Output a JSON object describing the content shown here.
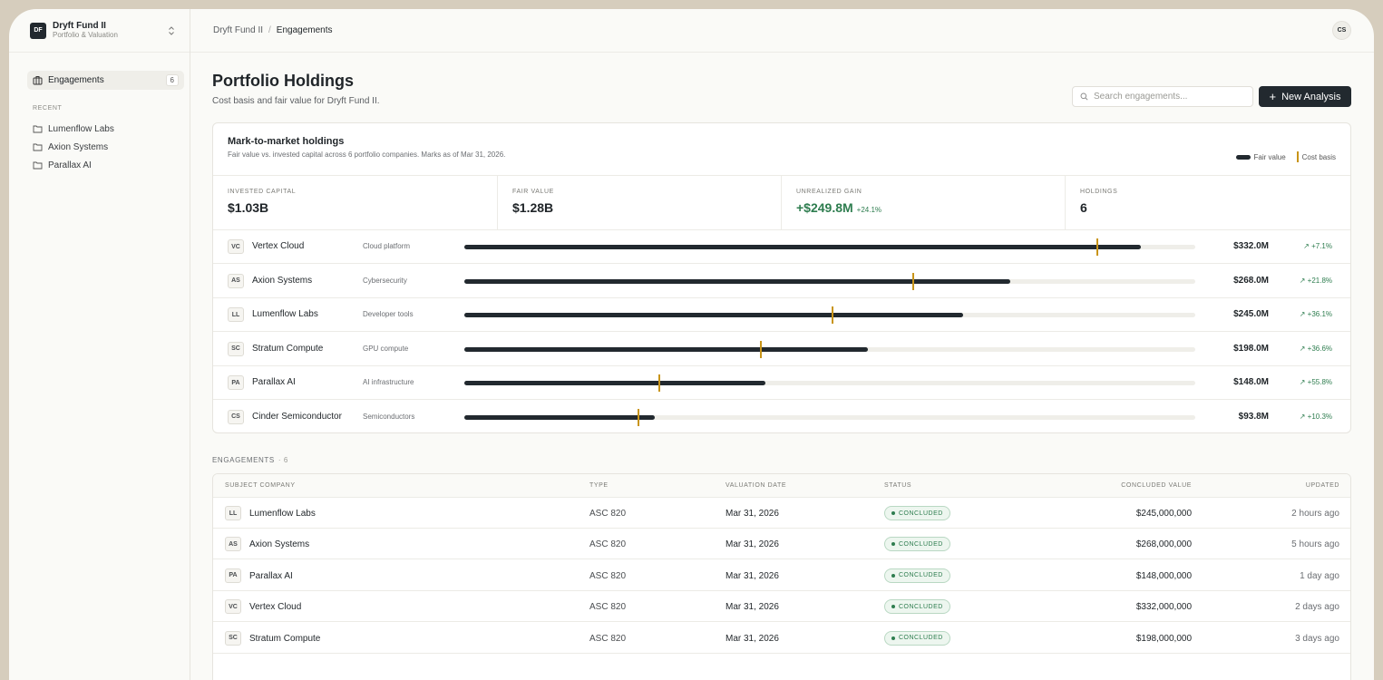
{
  "workspace": {
    "initials": "DF",
    "name": "Dryft Fund II",
    "subtitle": "Portfolio & Valuation"
  },
  "sidebar": {
    "nav": {
      "label": "Engagements",
      "count": "6"
    },
    "recent_heading": "RECENT",
    "recent": [
      {
        "label": "Lumenflow Labs"
      },
      {
        "label": "Axion Systems"
      },
      {
        "label": "Parallax AI"
      }
    ]
  },
  "breadcrumb": {
    "parent": "Dryft Fund II",
    "separator": "/",
    "current": "Engagements"
  },
  "user": {
    "initials": "CS"
  },
  "header": {
    "title": "Portfolio Holdings",
    "subtitle": "Cost basis and fair value for Dryft Fund II.",
    "search_placeholder": "Search engagements...",
    "new_button": "New Analysis"
  },
  "holdings_card": {
    "title": "Mark-to-market holdings",
    "subtitle": "Fair value vs. invested capital across 6 portfolio companies. Marks as of Mar 31, 2026.",
    "legend": {
      "fair": "Fair value",
      "cost": "Cost basis"
    },
    "stats": {
      "invested": {
        "label": "INVESTED CAPITAL",
        "value": "$1.03B"
      },
      "fair": {
        "label": "FAIR VALUE",
        "value": "$1.28B"
      },
      "gain": {
        "label": "UNREALIZED GAIN",
        "value": "+$249.8M",
        "pct": "+24.1%"
      },
      "holdings": {
        "label": "HOLDINGS",
        "value": "6"
      }
    },
    "rows": [
      {
        "initials": "VC",
        "name": "Vertex Cloud",
        "sector": "Cloud platform",
        "fair_value": "$332.0M",
        "change": "↗ +7.1%",
        "fair_fraction": 0.926,
        "cost_fraction": 0.865
      },
      {
        "initials": "AS",
        "name": "Axion Systems",
        "sector": "Cybersecurity",
        "fair_value": "$268.0M",
        "change": "↗ +21.8%",
        "fair_fraction": 0.747,
        "cost_fraction": 0.613
      },
      {
        "initials": "LL",
        "name": "Lumenflow Labs",
        "sector": "Developer tools",
        "fair_value": "$245.0M",
        "change": "↗ +36.1%",
        "fair_fraction": 0.683,
        "cost_fraction": 0.502
      },
      {
        "initials": "SC",
        "name": "Stratum Compute",
        "sector": "GPU compute",
        "fair_value": "$198.0M",
        "change": "↗ +36.6%",
        "fair_fraction": 0.552,
        "cost_fraction": 0.404
      },
      {
        "initials": "PA",
        "name": "Parallax AI",
        "sector": "AI infrastructure",
        "fair_value": "$148.0M",
        "change": "↗ +55.8%",
        "fair_fraction": 0.412,
        "cost_fraction": 0.265
      },
      {
        "initials": "CS",
        "name": "Cinder Semiconductor",
        "sector": "Semiconductors",
        "fair_value": "$93.8M",
        "change": "↗ +10.3%",
        "fair_fraction": 0.261,
        "cost_fraction": 0.237
      }
    ]
  },
  "engagements": {
    "heading": "ENGAGEMENTS",
    "count": "· 6",
    "columns": {
      "company": "SUBJECT COMPANY",
      "type": "TYPE",
      "date": "VALUATION DATE",
      "status": "STATUS",
      "value": "CONCLUDED VALUE",
      "updated": "UPDATED"
    },
    "rows": [
      {
        "initials": "LL",
        "company": "Lumenflow Labs",
        "type": "ASC 820",
        "date": "Mar 31, 2026",
        "status": "CONCLUDED",
        "value": "$245,000,000",
        "updated": "2 hours ago"
      },
      {
        "initials": "AS",
        "company": "Axion Systems",
        "type": "ASC 820",
        "date": "Mar 31, 2026",
        "status": "CONCLUDED",
        "value": "$268,000,000",
        "updated": "5 hours ago"
      },
      {
        "initials": "PA",
        "company": "Parallax AI",
        "type": "ASC 820",
        "date": "Mar 31, 2026",
        "status": "CONCLUDED",
        "value": "$148,000,000",
        "updated": "1 day ago"
      },
      {
        "initials": "VC",
        "company": "Vertex Cloud",
        "type": "ASC 820",
        "date": "Mar 31, 2026",
        "status": "CONCLUDED",
        "value": "$332,000,000",
        "updated": "2 days ago"
      },
      {
        "initials": "SC",
        "company": "Stratum Compute",
        "type": "ASC 820",
        "date": "Mar 31, 2026",
        "status": "CONCLUDED",
        "value": "$198,000,000",
        "updated": "3 days ago"
      }
    ]
  }
}
